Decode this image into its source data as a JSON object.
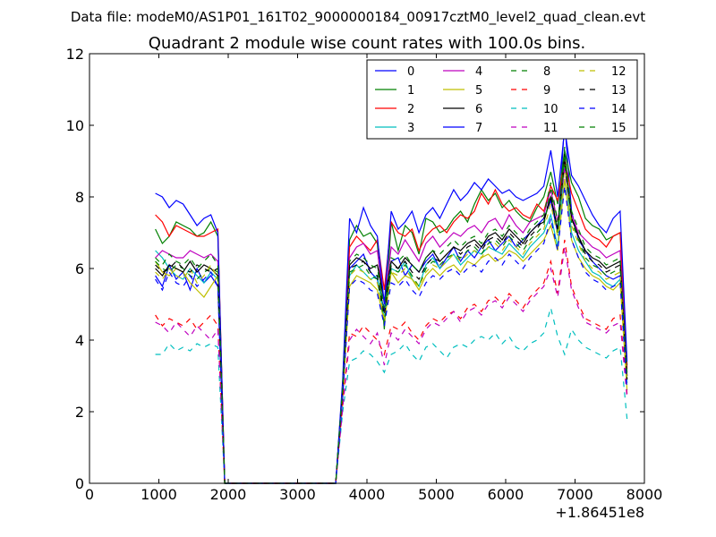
{
  "figure": {
    "suptitle": "Data file: modeM0/AS1P01_161T02_9000000184_00917cztM0_level2_quad_clean.evt"
  },
  "chart_data": {
    "type": "line",
    "title": "Quadrant 2 module wise count rates with 100.0s bins.",
    "xlabel": "",
    "ylabel": "",
    "x_offset_label": "+1.86451e8",
    "xlim": [
      0,
      8000
    ],
    "ylim": [
      0,
      12
    ],
    "x_ticks": [
      0,
      1000,
      2000,
      3000,
      4000,
      5000,
      6000,
      7000,
      8000
    ],
    "y_ticks": [
      0,
      2,
      4,
      6,
      8,
      10,
      12
    ],
    "grid": false,
    "legend_position": "top-right",
    "legend_columns": 4,
    "x": [
      950,
      1050,
      1150,
      1250,
      1350,
      1450,
      1550,
      1650,
      1750,
      1850,
      1950,
      2050,
      2150,
      2250,
      2350,
      2450,
      2550,
      2650,
      2750,
      2850,
      2950,
      3050,
      3150,
      3250,
      3350,
      3450,
      3550,
      3650,
      3750,
      3850,
      3950,
      4050,
      4150,
      4250,
      4350,
      4450,
      4550,
      4650,
      4750,
      4850,
      4950,
      5050,
      5150,
      5250,
      5350,
      5450,
      5550,
      5650,
      5750,
      5850,
      5950,
      6050,
      6150,
      6250,
      6350,
      6450,
      6550,
      6650,
      6750,
      6850,
      6950,
      7050,
      7150,
      7250,
      7350,
      7450,
      7550,
      7650,
      7750
    ],
    "series": [
      {
        "name": "0",
        "color": "#0000ff",
        "dash": "solid",
        "values": [
          5.8,
          5.5,
          6.1,
          5.7,
          5.9,
          5.4,
          6.0,
          5.6,
          5.8,
          5.5,
          0,
          0,
          0,
          0,
          0,
          0,
          0,
          0,
          0,
          0,
          0,
          0,
          0,
          0,
          0,
          0,
          0,
          2.6,
          6.0,
          6.2,
          6.4,
          5.9,
          5.7,
          4.8,
          6.2,
          6.3,
          5.8,
          6.1,
          5.9,
          6.2,
          6.4,
          6.0,
          6.3,
          6.6,
          6.2,
          6.5,
          6.3,
          6.6,
          6.8,
          6.5,
          6.7,
          6.9,
          6.6,
          6.8,
          7.0,
          7.2,
          7.4,
          7.9,
          7.0,
          10.1,
          7.6,
          6.8,
          6.5,
          6.2,
          6.0,
          5.8,
          5.7,
          5.8,
          3.1
        ]
      },
      {
        "name": "1",
        "color": "#008000",
        "dash": "solid",
        "values": [
          7.1,
          6.7,
          6.9,
          7.3,
          7.2,
          7.1,
          6.9,
          7.0,
          7.3,
          6.9,
          0,
          0,
          0,
          0,
          0,
          0,
          0,
          0,
          0,
          0,
          0,
          0,
          0,
          0,
          0,
          0,
          0,
          2.8,
          6.8,
          7.2,
          6.9,
          7.0,
          6.7,
          4.3,
          7.3,
          6.5,
          7.2,
          7.0,
          6.4,
          7.4,
          7.3,
          7.0,
          7.1,
          7.4,
          7.6,
          7.3,
          7.8,
          8.2,
          7.9,
          8.1,
          7.7,
          7.9,
          7.6,
          7.4,
          7.3,
          7.7,
          8.0,
          8.7,
          7.8,
          9.3,
          8.4,
          8.0,
          7.4,
          7.2,
          7.1,
          6.8,
          6.9,
          7.0,
          3.3
        ]
      },
      {
        "name": "2",
        "color": "#ff0000",
        "dash": "solid",
        "values": [
          7.5,
          7.3,
          6.9,
          7.2,
          7.1,
          7.0,
          6.9,
          6.9,
          7.0,
          7.1,
          0,
          0,
          0,
          0,
          0,
          0,
          0,
          0,
          0,
          0,
          0,
          0,
          0,
          0,
          0,
          0,
          0,
          2.7,
          6.6,
          6.9,
          6.7,
          6.5,
          6.8,
          5.4,
          7.3,
          7.0,
          6.9,
          7.1,
          6.5,
          6.9,
          7.1,
          7.2,
          7.0,
          7.3,
          7.5,
          7.4,
          7.6,
          8.1,
          7.8,
          8.2,
          7.8,
          7.6,
          7.7,
          7.5,
          7.4,
          7.8,
          7.6,
          8.3,
          7.9,
          9.0,
          8.1,
          7.6,
          7.1,
          6.9,
          6.8,
          6.6,
          6.9,
          7.0,
          3.2
        ]
      },
      {
        "name": "3",
        "color": "#00bfbf",
        "dash": "solid",
        "values": [
          6.5,
          6.3,
          6.0,
          5.8,
          5.7,
          6.0,
          5.8,
          5.6,
          5.9,
          5.7,
          0,
          0,
          0,
          0,
          0,
          0,
          0,
          0,
          0,
          0,
          0,
          0,
          0,
          0,
          0,
          0,
          0,
          2.5,
          5.8,
          6.1,
          5.9,
          5.7,
          5.8,
          4.6,
          6.0,
          5.9,
          6.2,
          5.7,
          5.5,
          6.1,
          6.3,
          6.0,
          6.2,
          6.4,
          6.1,
          6.3,
          6.5,
          6.4,
          6.6,
          6.5,
          6.4,
          6.7,
          6.5,
          6.3,
          6.6,
          6.8,
          7.0,
          7.5,
          6.6,
          8.9,
          7.0,
          6.5,
          6.2,
          5.9,
          5.8,
          5.6,
          5.5,
          5.7,
          2.8
        ]
      },
      {
        "name": "4",
        "color": "#bf00bf",
        "dash": "solid",
        "values": [
          6.3,
          6.5,
          6.4,
          6.3,
          6.3,
          6.5,
          6.4,
          6.3,
          6.4,
          6.2,
          0,
          0,
          0,
          0,
          0,
          0,
          0,
          0,
          0,
          0,
          0,
          0,
          0,
          0,
          0,
          0,
          0,
          2.6,
          6.3,
          6.6,
          6.7,
          6.4,
          6.5,
          5.0,
          6.6,
          6.4,
          6.8,
          6.5,
          6.2,
          6.7,
          6.9,
          6.6,
          6.8,
          7.0,
          6.9,
          7.1,
          7.2,
          7.0,
          7.3,
          7.4,
          7.1,
          7.5,
          7.2,
          7.0,
          7.3,
          7.4,
          7.5,
          8.2,
          7.3,
          8.8,
          7.5,
          7.0,
          6.8,
          6.6,
          6.5,
          6.3,
          6.4,
          6.5,
          3.0
        ]
      },
      {
        "name": "5",
        "color": "#bfbf00",
        "dash": "solid",
        "values": [
          6.2,
          5.9,
          5.8,
          6.0,
          5.9,
          5.6,
          5.4,
          5.2,
          5.5,
          5.8,
          0,
          0,
          0,
          0,
          0,
          0,
          0,
          0,
          0,
          0,
          0,
          0,
          0,
          0,
          0,
          0,
          0,
          2.4,
          5.5,
          5.8,
          5.7,
          5.6,
          5.4,
          4.5,
          5.9,
          5.6,
          5.8,
          5.7,
          5.4,
          5.8,
          6.0,
          5.8,
          6.0,
          6.1,
          5.9,
          6.2,
          6.1,
          6.3,
          6.4,
          6.2,
          6.3,
          6.5,
          6.4,
          6.2,
          6.4,
          6.6,
          6.8,
          7.2,
          6.5,
          8.5,
          6.8,
          6.3,
          6.0,
          5.8,
          5.7,
          5.5,
          5.4,
          5.6,
          2.6
        ]
      },
      {
        "name": "6",
        "color": "#000000",
        "dash": "solid",
        "values": [
          6.0,
          5.8,
          6.1,
          6.0,
          5.9,
          6.2,
          5.9,
          6.1,
          6.0,
          5.8,
          0,
          0,
          0,
          0,
          0,
          0,
          0,
          0,
          0,
          0,
          0,
          0,
          0,
          0,
          0,
          0,
          0,
          2.7,
          6.1,
          6.3,
          6.2,
          6.0,
          6.1,
          5.1,
          6.2,
          6.0,
          6.3,
          6.1,
          5.9,
          6.3,
          6.5,
          6.2,
          6.4,
          6.6,
          6.5,
          6.7,
          6.8,
          6.6,
          6.9,
          7.0,
          6.8,
          7.1,
          6.9,
          6.7,
          7.0,
          7.2,
          7.3,
          8.0,
          7.1,
          9.2,
          7.4,
          6.9,
          6.5,
          6.3,
          6.2,
          6.0,
          6.1,
          6.2,
          3.0
        ]
      },
      {
        "name": "7",
        "color": "#0000ff",
        "dash": "solid",
        "values": [
          8.1,
          8.0,
          7.7,
          7.9,
          7.8,
          7.5,
          7.2,
          7.4,
          7.5,
          7.0,
          0,
          0,
          0,
          0,
          0,
          0,
          0,
          0,
          0,
          0,
          0,
          0,
          0,
          0,
          0,
          0,
          0,
          2.9,
          7.4,
          7.0,
          7.7,
          7.2,
          6.9,
          5.0,
          7.6,
          7.1,
          7.3,
          7.6,
          7.0,
          7.5,
          7.7,
          7.4,
          7.8,
          8.2,
          7.9,
          8.1,
          8.4,
          8.2,
          8.5,
          8.3,
          8.1,
          8.2,
          8.0,
          7.9,
          8.0,
          8.1,
          8.3,
          9.3,
          8.0,
          9.9,
          8.6,
          8.3,
          7.9,
          7.5,
          7.2,
          7.0,
          7.4,
          7.6,
          3.4
        ]
      },
      {
        "name": "8",
        "color": "#008000",
        "dash": "dashed",
        "values": [
          6.2,
          6.0,
          5.9,
          6.1,
          6.0,
          5.8,
          5.7,
          5.9,
          6.0,
          5.9,
          0,
          0,
          0,
          0,
          0,
          0,
          0,
          0,
          0,
          0,
          0,
          0,
          0,
          0,
          0,
          0,
          0,
          2.6,
          5.9,
          6.0,
          6.1,
          5.8,
          5.7,
          4.5,
          6.0,
          5.9,
          6.1,
          5.8,
          5.5,
          6.0,
          6.2,
          6.1,
          6.3,
          6.4,
          6.3,
          6.5,
          6.6,
          6.4,
          6.7,
          6.8,
          6.6,
          6.9,
          6.7,
          6.5,
          6.8,
          7.0,
          7.2,
          8.2,
          7.0,
          9.4,
          7.3,
          6.8,
          6.3,
          6.1,
          6.0,
          5.8,
          5.9,
          6.0,
          2.9
        ]
      },
      {
        "name": "9",
        "color": "#ff0000",
        "dash": "dashed",
        "values": [
          4.7,
          4.4,
          4.6,
          4.5,
          4.4,
          4.6,
          4.3,
          4.5,
          4.7,
          4.4,
          0,
          0,
          0,
          0,
          0,
          0,
          0,
          0,
          0,
          0,
          0,
          0,
          0,
          0,
          0,
          0,
          0,
          2.2,
          4.2,
          4.1,
          4.4,
          4.2,
          4.0,
          3.6,
          4.4,
          4.3,
          4.5,
          4.2,
          4.0,
          4.4,
          4.6,
          4.5,
          4.7,
          4.8,
          4.6,
          4.9,
          5.0,
          4.8,
          5.1,
          5.2,
          5.0,
          5.3,
          5.1,
          4.9,
          5.2,
          5.4,
          5.6,
          6.2,
          5.3,
          6.8,
          5.5,
          5.0,
          4.6,
          4.5,
          4.4,
          4.3,
          4.6,
          4.7,
          2.5
        ]
      },
      {
        "name": "10",
        "color": "#00bfbf",
        "dash": "dashed",
        "values": [
          3.6,
          3.6,
          3.9,
          3.7,
          3.8,
          3.7,
          3.9,
          3.8,
          3.9,
          3.8,
          0,
          0,
          0,
          0,
          0,
          0,
          0,
          0,
          0,
          0,
          0,
          0,
          0,
          0,
          0,
          0,
          0,
          2.0,
          3.4,
          3.5,
          3.7,
          3.6,
          3.4,
          3.1,
          3.6,
          3.7,
          3.9,
          3.6,
          3.4,
          3.8,
          3.9,
          3.7,
          3.5,
          3.8,
          3.9,
          3.8,
          4.0,
          4.1,
          4.0,
          4.2,
          3.9,
          4.1,
          3.8,
          3.7,
          3.9,
          4.0,
          4.2,
          4.9,
          4.1,
          3.6,
          4.3,
          4.0,
          3.8,
          3.7,
          3.6,
          3.5,
          3.7,
          3.8,
          1.8
        ]
      },
      {
        "name": "11",
        "color": "#bf00bf",
        "dash": "dashed",
        "values": [
          4.5,
          4.4,
          4.2,
          4.5,
          4.3,
          4.1,
          4.4,
          4.2,
          4.0,
          4.3,
          0,
          0,
          0,
          0,
          0,
          0,
          0,
          0,
          0,
          0,
          0,
          0,
          0,
          0,
          0,
          0,
          0,
          2.1,
          4.0,
          4.3,
          4.1,
          3.9,
          4.2,
          3.3,
          4.2,
          4.0,
          4.3,
          4.1,
          3.9,
          4.3,
          4.5,
          4.4,
          4.6,
          4.8,
          4.5,
          4.8,
          4.9,
          4.7,
          5.0,
          5.1,
          4.9,
          5.2,
          5.0,
          4.8,
          5.1,
          5.3,
          5.5,
          6.0,
          5.2,
          6.6,
          5.4,
          4.9,
          4.5,
          4.4,
          4.3,
          4.2,
          4.4,
          4.5,
          2.4
        ]
      },
      {
        "name": "12",
        "color": "#bfbf00",
        "dash": "dashed",
        "values": [
          5.9,
          5.7,
          6.0,
          5.8,
          5.7,
          6.0,
          5.6,
          5.8,
          6.1,
          5.7,
          0,
          0,
          0,
          0,
          0,
          0,
          0,
          0,
          0,
          0,
          0,
          0,
          0,
          0,
          0,
          0,
          0,
          2.5,
          5.8,
          6.0,
          5.9,
          5.7,
          5.6,
          4.6,
          5.9,
          5.8,
          6.0,
          5.7,
          5.5,
          5.9,
          6.1,
          6.0,
          6.2,
          6.4,
          6.2,
          6.4,
          6.5,
          6.3,
          6.6,
          6.7,
          6.5,
          6.8,
          6.6,
          6.4,
          6.7,
          6.9,
          7.1,
          7.8,
          6.9,
          8.9,
          7.2,
          6.7,
          6.2,
          6.0,
          5.9,
          5.7,
          5.8,
          5.9,
          2.8
        ]
      },
      {
        "name": "13",
        "color": "#000000",
        "dash": "dashed",
        "values": [
          6.1,
          5.9,
          6.0,
          6.2,
          6.0,
          5.9,
          6.1,
          6.0,
          5.9,
          6.0,
          0,
          0,
          0,
          0,
          0,
          0,
          0,
          0,
          0,
          0,
          0,
          0,
          0,
          0,
          0,
          0,
          0,
          2.6,
          6.0,
          6.1,
          6.2,
          5.9,
          5.8,
          4.7,
          6.1,
          6.0,
          6.2,
          5.9,
          5.7,
          6.1,
          6.3,
          6.2,
          6.4,
          6.6,
          6.4,
          6.6,
          6.7,
          6.5,
          6.8,
          6.9,
          6.7,
          7.0,
          6.8,
          6.6,
          6.9,
          7.1,
          7.4,
          8.0,
          7.1,
          9.0,
          7.4,
          6.9,
          6.4,
          6.2,
          6.1,
          5.9,
          6.0,
          6.1,
          2.9
        ]
      },
      {
        "name": "14",
        "color": "#0000ff",
        "dash": "dashed",
        "values": [
          5.7,
          5.4,
          5.9,
          5.6,
          5.5,
          5.8,
          5.5,
          5.7,
          5.9,
          5.5,
          0,
          0,
          0,
          0,
          0,
          0,
          0,
          0,
          0,
          0,
          0,
          0,
          0,
          0,
          0,
          0,
          0,
          2.4,
          5.5,
          5.7,
          5.6,
          5.4,
          5.3,
          4.4,
          5.6,
          5.5,
          5.7,
          5.4,
          5.2,
          5.6,
          5.8,
          5.7,
          5.9,
          6.0,
          5.8,
          6.0,
          6.1,
          5.9,
          6.2,
          6.3,
          6.1,
          6.4,
          6.2,
          6.0,
          6.3,
          6.5,
          6.7,
          7.4,
          6.5,
          8.3,
          6.8,
          6.3,
          5.9,
          5.7,
          5.6,
          5.4,
          5.5,
          5.6,
          2.6
        ]
      },
      {
        "name": "15",
        "color": "#008000",
        "dash": "dashed",
        "values": [
          6.3,
          6.1,
          6.4,
          6.2,
          6.1,
          6.3,
          6.0,
          6.2,
          6.4,
          6.1,
          0,
          0,
          0,
          0,
          0,
          0,
          0,
          0,
          0,
          0,
          0,
          0,
          0,
          0,
          0,
          0,
          0,
          2.7,
          6.2,
          6.4,
          6.3,
          6.1,
          6.0,
          4.9,
          6.3,
          6.2,
          6.4,
          6.1,
          5.9,
          6.3,
          6.5,
          6.4,
          6.6,
          6.8,
          6.6,
          6.8,
          6.9,
          6.7,
          7.0,
          7.1,
          6.9,
          7.2,
          7.0,
          6.8,
          7.1,
          7.3,
          7.5,
          8.4,
          7.3,
          9.1,
          7.6,
          7.1,
          6.6,
          6.4,
          6.3,
          6.1,
          6.2,
          6.3,
          3.0
        ]
      }
    ]
  }
}
